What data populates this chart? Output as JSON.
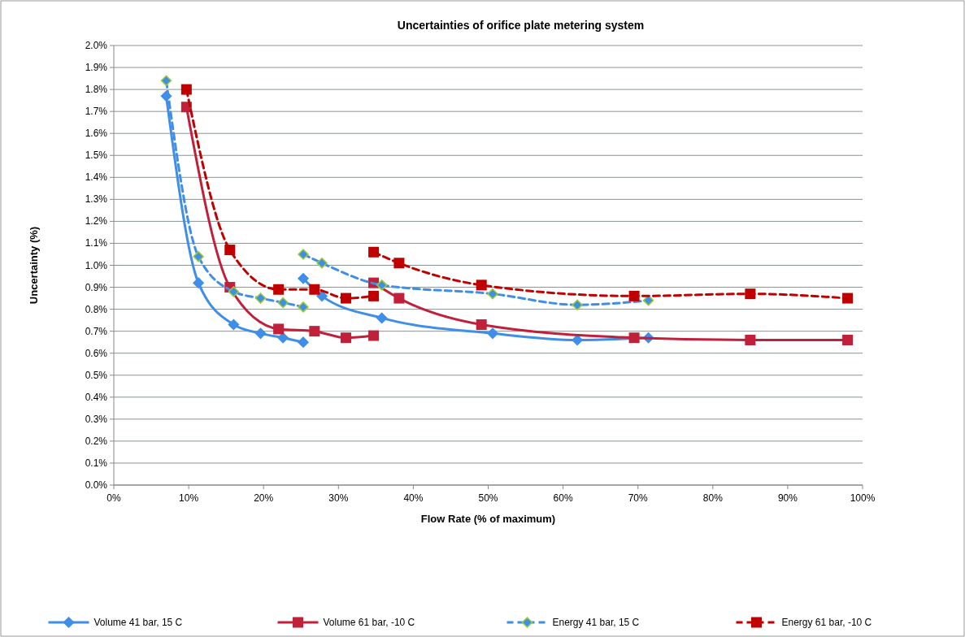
{
  "chart_data": {
    "type": "line",
    "title": "Uncertainties of orifice plate metering system",
    "xlabel": "Flow Rate (% of maximum)",
    "ylabel": "Uncertainty (%)",
    "xlim": [
      0,
      100
    ],
    "xticks": [
      {
        "value": 0,
        "label": "0%"
      },
      {
        "value": 10,
        "label": "10%"
      },
      {
        "value": 20,
        "label": "20%"
      },
      {
        "value": 30,
        "label": "30%"
      },
      {
        "value": 40,
        "label": "40%"
      },
      {
        "value": 50,
        "label": "50%"
      },
      {
        "value": 60,
        "label": "60%"
      },
      {
        "value": 70,
        "label": "70%"
      },
      {
        "value": 80,
        "label": "80%"
      },
      {
        "value": 90,
        "label": "90%"
      },
      {
        "value": 100,
        "label": "100%"
      }
    ],
    "ylim": [
      0,
      2
    ],
    "yticks": [
      {
        "value": 0,
        "label": "0.0%"
      },
      {
        "value": 0.1,
        "label": "0.1%"
      },
      {
        "value": 0.2,
        "label": "0.2%"
      },
      {
        "value": 0.3,
        "label": "0.3%"
      },
      {
        "value": 0.4,
        "label": "0.4%"
      },
      {
        "value": 0.5,
        "label": "0.5%"
      },
      {
        "value": 0.6,
        "label": "0.6%"
      },
      {
        "value": 0.7,
        "label": "0.7%"
      },
      {
        "value": 0.8,
        "label": "0.8%"
      },
      {
        "value": 0.9,
        "label": "0.9%"
      },
      {
        "value": 1,
        "label": "1.0%"
      },
      {
        "value": 1.1,
        "label": "1.1%"
      },
      {
        "value": 1.2,
        "label": "1.2%"
      },
      {
        "value": 1.3,
        "label": "1.3%"
      },
      {
        "value": 1.4,
        "label": "1.4%"
      },
      {
        "value": 1.5,
        "label": "1.5%"
      },
      {
        "value": 1.6,
        "label": "1.6%"
      },
      {
        "value": 1.7,
        "label": "1.7%"
      },
      {
        "value": 1.8,
        "label": "1.8%"
      },
      {
        "value": 1.9,
        "label": "1.9%"
      },
      {
        "value": 2,
        "label": "2.0%"
      }
    ],
    "grid": "y",
    "legend": "bottom",
    "series": [
      {
        "name": "Volume 41 bar, 15 C",
        "color": "#3f8ee8",
        "marker": "diamond",
        "line_style": "solid",
        "x": [
          7.0,
          11.3,
          16.0,
          19.6,
          22.6,
          25.3,
          null,
          25.3,
          27.8,
          35.8,
          50.6,
          61.9,
          71.4
        ],
        "values": [
          1.77,
          0.92,
          0.73,
          0.69,
          0.67,
          0.65,
          null,
          0.94,
          0.86,
          0.76,
          0.69,
          0.66,
          0.67
        ]
      },
      {
        "name": "Volume 61 bar, -10 C",
        "color": "#c0203a",
        "marker": "square",
        "line_style": "solid",
        "x": [
          9.7,
          15.5,
          22.0,
          26.8,
          31.0,
          34.7,
          null,
          34.7,
          38.1,
          49.1,
          69.5,
          85.0,
          98.0
        ],
        "values": [
          1.72,
          0.9,
          0.71,
          0.7,
          0.67,
          0.68,
          null,
          0.92,
          0.85,
          0.73,
          0.67,
          0.66,
          0.66
        ]
      },
      {
        "name": "Energy 41 bar, 15 C",
        "color": "#3f8ee8",
        "marker": "diamond",
        "line_style": "dashed",
        "x": [
          7.0,
          11.3,
          16.0,
          19.6,
          22.6,
          25.3,
          null,
          25.3,
          27.8,
          35.8,
          50.6,
          61.9,
          71.4
        ],
        "values": [
          1.84,
          1.04,
          0.88,
          0.85,
          0.83,
          0.81,
          null,
          1.05,
          1.01,
          0.91,
          0.87,
          0.82,
          0.84
        ]
      },
      {
        "name": "Energy 61 bar, -10 C",
        "color": "#c00000",
        "marker": "square",
        "line_style": "dashed",
        "x": [
          9.7,
          15.5,
          22.0,
          26.8,
          31.0,
          34.7,
          null,
          34.7,
          38.1,
          49.1,
          69.5,
          85.0,
          98.0
        ],
        "values": [
          1.8,
          1.07,
          0.89,
          0.89,
          0.85,
          0.86,
          null,
          1.06,
          1.01,
          0.91,
          0.86,
          0.87,
          0.85
        ]
      }
    ]
  }
}
